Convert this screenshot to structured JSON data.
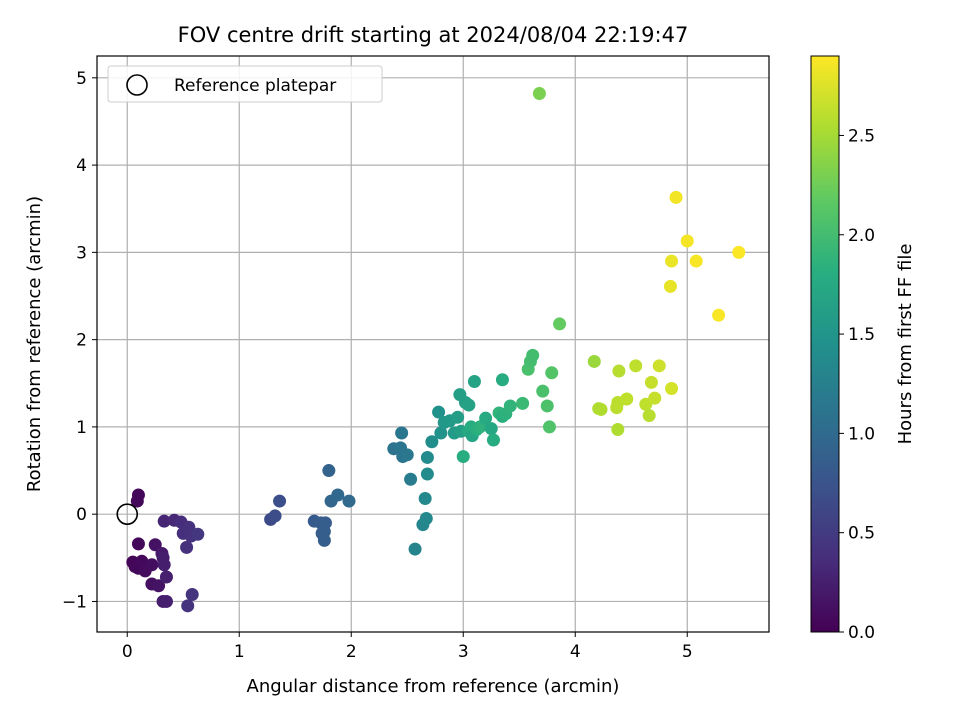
{
  "chart_data": {
    "type": "scatter",
    "title": "FOV centre drift starting at 2024/08/04 22:19:47",
    "xlabel": "Angular distance from reference (arcmin)",
    "ylabel": "Rotation from reference (arcmin)",
    "xlim": [
      -0.27,
      5.73
    ],
    "ylim": [
      -1.35,
      5.25
    ],
    "xticks": [
      0,
      1,
      2,
      3,
      4,
      5
    ],
    "yticks": [
      -1,
      0,
      1,
      2,
      3,
      4,
      5
    ],
    "xtick_labels": [
      "0",
      "1",
      "2",
      "3",
      "4",
      "5"
    ],
    "ytick_labels": [
      "−1",
      "0",
      "1",
      "2",
      "3",
      "4",
      "5"
    ],
    "grid": true,
    "legend": {
      "placement": "upper-left",
      "entries": [
        "Reference platepar"
      ]
    },
    "reference_point": {
      "x": 0,
      "y": 0
    },
    "colorbar": {
      "label": "Hours from first FF file",
      "range": [
        0.0,
        2.9
      ],
      "ticks": [
        0.0,
        0.5,
        1.0,
        1.5,
        2.0,
        2.5
      ],
      "tick_labels": [
        "0.0",
        "0.5",
        "1.0",
        "1.5",
        "2.0",
        "2.5"
      ],
      "colormap": "viridis"
    },
    "series": [
      {
        "points": [
          {
            "x": 0.1,
            "y": 0.22,
            "c": 0.05
          },
          {
            "x": 0.09,
            "y": 0.15,
            "c": 0.06
          },
          {
            "x": 0.1,
            "y": -0.34,
            "c": 0.06
          },
          {
            "x": 0.05,
            "y": -0.55,
            "c": 0.04
          },
          {
            "x": 0.07,
            "y": -0.6,
            "c": 0.05
          },
          {
            "x": 0.1,
            "y": -0.62,
            "c": 0.06
          },
          {
            "x": 0.13,
            "y": -0.54,
            "c": 0.07
          },
          {
            "x": 0.16,
            "y": -0.65,
            "c": 0.08
          },
          {
            "x": 0.22,
            "y": -0.58,
            "c": 0.1
          },
          {
            "x": 0.22,
            "y": -0.8,
            "c": 0.12
          },
          {
            "x": 0.25,
            "y": -0.35,
            "c": 0.14
          },
          {
            "x": 0.28,
            "y": -0.82,
            "c": 0.15
          },
          {
            "x": 0.31,
            "y": -0.45,
            "c": 0.2
          },
          {
            "x": 0.32,
            "y": -0.5,
            "c": 0.22
          },
          {
            "x": 0.33,
            "y": -0.58,
            "c": 0.24
          },
          {
            "x": 0.35,
            "y": -0.72,
            "c": 0.25
          },
          {
            "x": 0.32,
            "y": -1.0,
            "c": 0.22
          },
          {
            "x": 0.35,
            "y": -1.0,
            "c": 0.25
          },
          {
            "x": 0.33,
            "y": -0.08,
            "c": 0.3
          },
          {
            "x": 0.42,
            "y": -0.07,
            "c": 0.33
          },
          {
            "x": 0.48,
            "y": -0.09,
            "c": 0.36
          },
          {
            "x": 0.5,
            "y": -0.22,
            "c": 0.38
          },
          {
            "x": 0.55,
            "y": -0.15,
            "c": 0.4
          },
          {
            "x": 0.57,
            "y": -0.25,
            "c": 0.42
          },
          {
            "x": 0.53,
            "y": -0.38,
            "c": 0.4
          },
          {
            "x": 0.63,
            "y": -0.23,
            "c": 0.45
          },
          {
            "x": 0.58,
            "y": -0.92,
            "c": 0.43
          },
          {
            "x": 0.54,
            "y": -1.05,
            "c": 0.42
          },
          {
            "x": 1.28,
            "y": -0.06,
            "c": 0.65
          },
          {
            "x": 1.32,
            "y": -0.02,
            "c": 0.68
          },
          {
            "x": 1.36,
            "y": 0.15,
            "c": 0.7
          },
          {
            "x": 1.67,
            "y": -0.08,
            "c": 0.82
          },
          {
            "x": 1.73,
            "y": -0.1,
            "c": 0.84
          },
          {
            "x": 1.77,
            "y": -0.1,
            "c": 0.85
          },
          {
            "x": 1.76,
            "y": -0.2,
            "c": 0.86
          },
          {
            "x": 1.74,
            "y": -0.22,
            "c": 0.85
          },
          {
            "x": 1.76,
            "y": -0.3,
            "c": 0.86
          },
          {
            "x": 1.8,
            "y": 0.5,
            "c": 0.92
          },
          {
            "x": 1.82,
            "y": 0.15,
            "c": 0.95
          },
          {
            "x": 1.88,
            "y": 0.22,
            "c": 0.97
          },
          {
            "x": 1.98,
            "y": 0.15,
            "c": 1.0
          },
          {
            "x": 2.38,
            "y": 0.75,
            "c": 1.1
          },
          {
            "x": 2.44,
            "y": 0.76,
            "c": 1.12
          },
          {
            "x": 2.45,
            "y": 0.93,
            "c": 1.14
          },
          {
            "x": 2.46,
            "y": 0.66,
            "c": 1.13
          },
          {
            "x": 2.5,
            "y": 0.68,
            "c": 1.15
          },
          {
            "x": 2.53,
            "y": 0.4,
            "c": 1.2
          },
          {
            "x": 2.57,
            "y": -0.4,
            "c": 1.3
          },
          {
            "x": 2.64,
            "y": -0.12,
            "c": 1.33
          },
          {
            "x": 2.67,
            "y": -0.05,
            "c": 1.35
          },
          {
            "x": 2.66,
            "y": 0.18,
            "c": 1.36
          },
          {
            "x": 2.68,
            "y": 0.46,
            "c": 1.38
          },
          {
            "x": 2.68,
            "y": 0.65,
            "c": 1.38
          },
          {
            "x": 2.72,
            "y": 0.83,
            "c": 1.42
          },
          {
            "x": 2.78,
            "y": 1.17,
            "c": 1.45
          },
          {
            "x": 2.8,
            "y": 0.93,
            "c": 1.48
          },
          {
            "x": 2.83,
            "y": 1.05,
            "c": 1.52
          },
          {
            "x": 2.88,
            "y": 1.07,
            "c": 1.55
          },
          {
            "x": 2.92,
            "y": 0.93,
            "c": 1.58
          },
          {
            "x": 2.95,
            "y": 1.11,
            "c": 1.6
          },
          {
            "x": 2.97,
            "y": 1.37,
            "c": 1.62
          },
          {
            "x": 2.98,
            "y": 0.95,
            "c": 1.63
          },
          {
            "x": 3.0,
            "y": 0.66,
            "c": 1.8
          },
          {
            "x": 3.02,
            "y": 1.28,
            "c": 1.62
          },
          {
            "x": 3.05,
            "y": 1.25,
            "c": 1.65
          },
          {
            "x": 3.05,
            "y": 0.95,
            "c": 1.75
          },
          {
            "x": 3.07,
            "y": 1.0,
            "c": 1.78
          },
          {
            "x": 3.08,
            "y": 0.9,
            "c": 1.7
          },
          {
            "x": 3.1,
            "y": 1.52,
            "c": 1.68
          },
          {
            "x": 3.12,
            "y": 0.97,
            "c": 1.82
          },
          {
            "x": 3.15,
            "y": 1.0,
            "c": 1.85
          },
          {
            "x": 3.2,
            "y": 1.1,
            "c": 1.75
          },
          {
            "x": 3.25,
            "y": 0.98,
            "c": 1.72
          },
          {
            "x": 3.27,
            "y": 0.85,
            "c": 1.78
          },
          {
            "x": 3.32,
            "y": 1.16,
            "c": 1.88
          },
          {
            "x": 3.35,
            "y": 1.12,
            "c": 1.82
          },
          {
            "x": 3.35,
            "y": 1.54,
            "c": 1.78
          },
          {
            "x": 3.38,
            "y": 1.15,
            "c": 1.85
          },
          {
            "x": 3.42,
            "y": 1.24,
            "c": 1.88
          },
          {
            "x": 3.53,
            "y": 1.27,
            "c": 1.95
          },
          {
            "x": 3.58,
            "y": 1.66,
            "c": 2.05
          },
          {
            "x": 3.6,
            "y": 1.75,
            "c": 2.02
          },
          {
            "x": 3.62,
            "y": 1.82,
            "c": 2.0
          },
          {
            "x": 3.68,
            "y": 4.82,
            "c": 2.3
          },
          {
            "x": 3.71,
            "y": 1.41,
            "c": 2.05
          },
          {
            "x": 3.75,
            "y": 1.24,
            "c": 2.06
          },
          {
            "x": 3.77,
            "y": 1.0,
            "c": 2.08
          },
          {
            "x": 3.79,
            "y": 1.62,
            "c": 2.1
          },
          {
            "x": 3.86,
            "y": 2.18,
            "c": 2.2
          },
          {
            "x": 4.17,
            "y": 1.75,
            "c": 2.45
          },
          {
            "x": 4.21,
            "y": 1.21,
            "c": 2.55
          },
          {
            "x": 4.23,
            "y": 1.2,
            "c": 2.55
          },
          {
            "x": 4.37,
            "y": 1.22,
            "c": 2.6
          },
          {
            "x": 4.38,
            "y": 1.28,
            "c": 2.6
          },
          {
            "x": 4.38,
            "y": 0.97,
            "c": 2.55
          },
          {
            "x": 4.39,
            "y": 1.64,
            "c": 2.58
          },
          {
            "x": 4.46,
            "y": 1.32,
            "c": 2.62
          },
          {
            "x": 4.54,
            "y": 1.7,
            "c": 2.62
          },
          {
            "x": 4.63,
            "y": 1.26,
            "c": 2.62
          },
          {
            "x": 4.66,
            "y": 1.13,
            "c": 2.58
          },
          {
            "x": 4.68,
            "y": 1.51,
            "c": 2.65
          },
          {
            "x": 4.71,
            "y": 1.33,
            "c": 2.65
          },
          {
            "x": 4.75,
            "y": 1.7,
            "c": 2.68
          },
          {
            "x": 4.86,
            "y": 1.44,
            "c": 2.72
          },
          {
            "x": 4.85,
            "y": 2.61,
            "c": 2.8
          },
          {
            "x": 4.86,
            "y": 2.9,
            "c": 2.82
          },
          {
            "x": 4.9,
            "y": 3.63,
            "c": 2.85
          },
          {
            "x": 5.0,
            "y": 3.13,
            "c": 2.86
          },
          {
            "x": 5.08,
            "y": 2.9,
            "c": 2.87
          },
          {
            "x": 5.28,
            "y": 2.28,
            "c": 2.88
          },
          {
            "x": 5.46,
            "y": 3.0,
            "c": 2.89
          }
        ]
      }
    ]
  }
}
